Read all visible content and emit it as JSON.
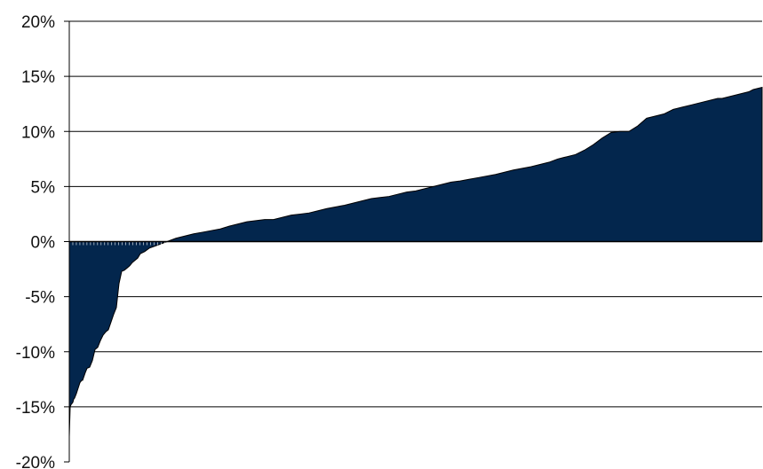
{
  "chart_data": {
    "type": "area",
    "title": "",
    "xlabel": "",
    "ylabel": "",
    "ylim": [
      -20,
      20
    ],
    "ytick_step": 5,
    "yticks": [
      "20%",
      "15%",
      "10%",
      "5%",
      "0%",
      "-5%",
      "-10%",
      "-15%",
      "-20%"
    ],
    "grid": true,
    "fill_color": "#03264D",
    "x": [
      0,
      1,
      2,
      3,
      4,
      5,
      6,
      7,
      8,
      10,
      12,
      14,
      15,
      18,
      20,
      23,
      26,
      29,
      32,
      35,
      38,
      41,
      44,
      47,
      50,
      53,
      56,
      59,
      62,
      65,
      68,
      71,
      74,
      77,
      80,
      85,
      90,
      100,
      110,
      120,
      130,
      140,
      150,
      160,
      170,
      180,
      190,
      200,
      210,
      220,
      230,
      240,
      250,
      260,
      270,
      280,
      290,
      300,
      310,
      320,
      330,
      340,
      350,
      360,
      370,
      380,
      390,
      400,
      410,
      420,
      430,
      440,
      450,
      460,
      470,
      480,
      490,
      500,
      510,
      520,
      530,
      540,
      550,
      560,
      570,
      580,
      590,
      600,
      610,
      620,
      630,
      640,
      650,
      660,
      670,
      680,
      690,
      700,
      710,
      720,
      725,
      730,
      735,
      740,
      745,
      750,
      755,
      760,
      765,
      770,
      775,
      780
    ],
    "values": [
      -17.7,
      -15.0,
      -14.8,
      -14.7,
      -14.6,
      -14.3,
      -14.2,
      -14.0,
      -13.8,
      -13.3,
      -12.8,
      -12.6,
      -12.6,
      -11.9,
      -11.5,
      -11.4,
      -10.8,
      -9.8,
      -9.6,
      -9.0,
      -8.5,
      -8.2,
      -8.0,
      -7.3,
      -6.6,
      -6.0,
      -3.8,
      -2.7,
      -2.6,
      -2.4,
      -2.2,
      -1.9,
      -1.7,
      -1.5,
      -1.1,
      -0.9,
      -0.6,
      -0.3,
      0.0,
      0.3,
      0.5,
      0.7,
      0.85,
      1.0,
      1.15,
      1.4,
      1.6,
      1.8,
      1.9,
      2.0,
      2.0,
      2.2,
      2.4,
      2.5,
      2.6,
      2.8,
      3.0,
      3.15,
      3.3,
      3.5,
      3.7,
      3.9,
      4.0,
      4.1,
      4.3,
      4.5,
      4.6,
      4.8,
      5.0,
      5.2,
      5.4,
      5.5,
      5.65,
      5.8,
      5.95,
      6.1,
      6.3,
      6.5,
      6.65,
      6.8,
      7.0,
      7.2,
      7.5,
      7.7,
      7.9,
      8.3,
      8.8,
      9.4,
      9.9,
      10.0,
      10.0,
      10.5,
      11.2,
      11.4,
      11.6,
      12.0,
      12.2,
      12.4,
      12.6,
      12.8,
      12.9,
      13.0,
      13.0,
      13.1,
      13.2,
      13.3,
      13.4,
      13.5,
      13.6,
      13.8,
      13.9,
      14.0
    ]
  }
}
